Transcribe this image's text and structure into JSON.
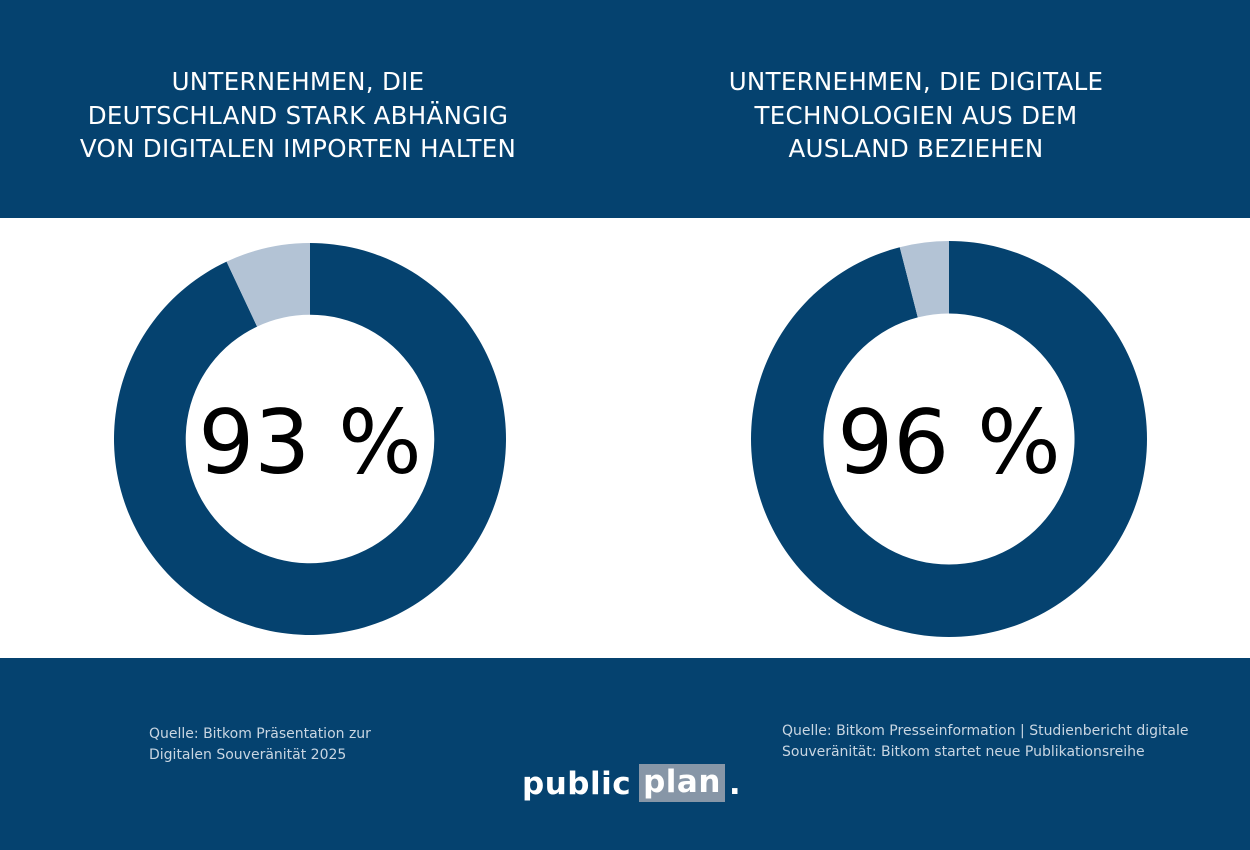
{
  "colors": {
    "navy": "#05426f",
    "light": "#b3c3d5",
    "white": "#ffffff"
  },
  "chart_data": [
    {
      "type": "pie",
      "variant": "donut",
      "title": "UNTERNEHMEN, DIE\nDEUTSCHLAND STARK ABHÄNGIG\nVON DIGITALEN IMPORTEN HALTEN",
      "center_label": "93 %",
      "slices": [
        {
          "value": 93,
          "color": "#05426f"
        },
        {
          "value": 7,
          "color": "#b3c3d5"
        }
      ]
    },
    {
      "type": "pie",
      "variant": "donut",
      "title": "UNTERNEHMEN, DIE DIGITALE\nTECHNOLOGIEN AUS DEM\nAUSLAND BEZIEHEN",
      "center_label": "96 %",
      "slices": [
        {
          "value": 96,
          "color": "#05426f"
        },
        {
          "value": 4,
          "color": "#b3c3d5"
        }
      ]
    }
  ],
  "sources": {
    "left": "Quelle: Bitkom Präsentation zur\nDigitalen Souveränität 2025",
    "right": "Quelle: Bitkom Presseinformation | Studienbericht digitale\nSouveränität: Bitkom startet neue Publikationsreihe"
  },
  "logo": {
    "word1": "public",
    "word2": "plan",
    "dot": "."
  }
}
